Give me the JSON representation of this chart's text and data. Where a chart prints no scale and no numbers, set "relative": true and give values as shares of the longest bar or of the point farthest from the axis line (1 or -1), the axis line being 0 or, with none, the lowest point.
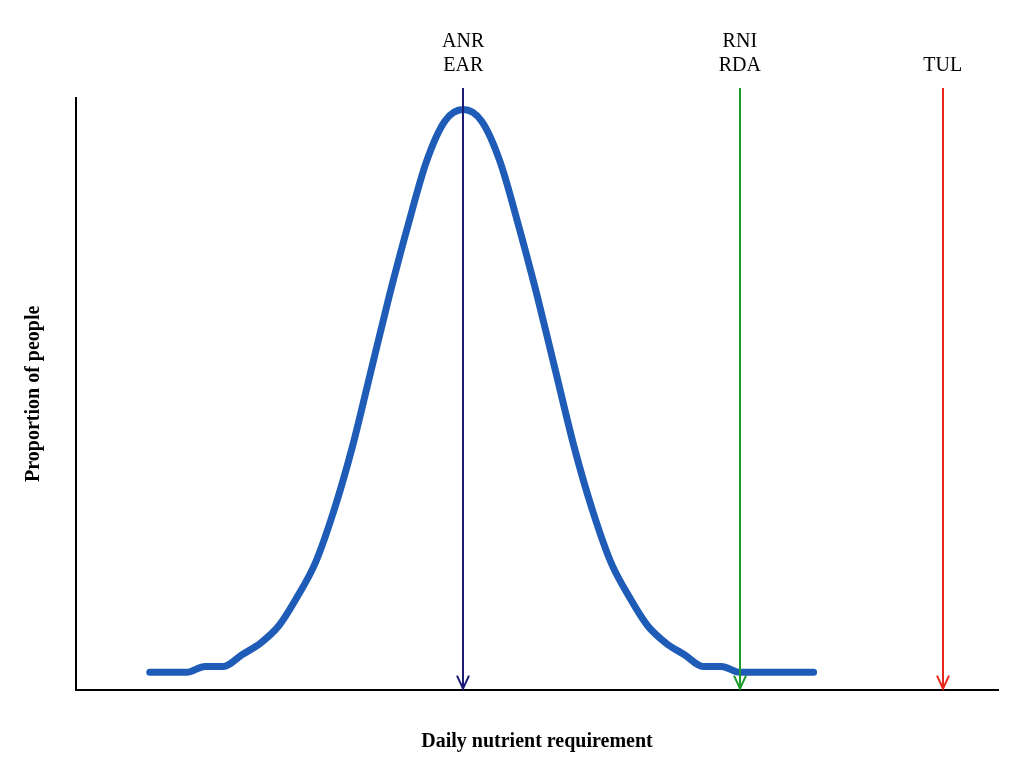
{
  "chart_data": {
    "type": "line",
    "relative": true,
    "xlabel": "Daily nutrient requirement",
    "ylabel": "Proportion of people",
    "categories": [
      null,
      null,
      null,
      null,
      null,
      null,
      null,
      null,
      null,
      null,
      null,
      null,
      null,
      null,
      null,
      null,
      null,
      null,
      null,
      null,
      null,
      null,
      null,
      null,
      null,
      null,
      null,
      null,
      null,
      null,
      null,
      null,
      null,
      null,
      null,
      null,
      null,
      null,
      null,
      null,
      null,
      null,
      null,
      null,
      null,
      null,
      null,
      null,
      null,
      null,
      null
    ],
    "series": [
      {
        "color": "#1f5cb8",
        "values": [
          null,
          null,
          null,
          null,
          0.03,
          0.03,
          0.03,
          0.04,
          0.04,
          0.06,
          0.08,
          0.11,
          0.16,
          0.22,
          0.31,
          0.42,
          0.55,
          0.68,
          0.8,
          0.91,
          0.98,
          1.0,
          0.98,
          0.91,
          0.8,
          0.68,
          0.55,
          0.42,
          0.31,
          0.22,
          0.16,
          0.11,
          0.08,
          0.06,
          0.04,
          0.04,
          0.03,
          0.03,
          0.03,
          0.03,
          0.03,
          null,
          null,
          null,
          null,
          null,
          null,
          null,
          null,
          null,
          null
        ]
      }
    ],
    "annotations": [
      "ANR\nEAR",
      "RNI\nRDA",
      "TUL"
    ],
    "grid": false,
    "legend": false,
    "marker": "none",
    "line_style": "solid"
  }
}
